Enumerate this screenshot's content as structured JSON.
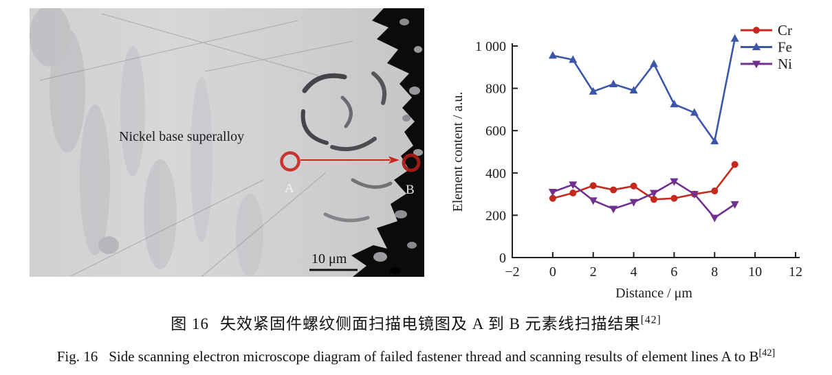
{
  "figure": {
    "caption_zh_label": "图 16",
    "caption_zh_text": "失效紧固件螺纹侧面扫描电镜图及 A 到 B 元素线扫描结果",
    "caption_en_label": "Fig. 16",
    "caption_en_text": "Side scanning electron microscope diagram of failed fastener thread and scanning results of element lines A to B",
    "caption_ref": "[42]"
  },
  "sem": {
    "region_label": "Nickel base superalloy",
    "point_a": "A",
    "point_b": "B",
    "scale_bar": "10 μm",
    "annotation_color": "#c62820"
  },
  "chart_data": {
    "type": "line",
    "title": "",
    "xlabel": "Distance / μm",
    "ylabel": "Element content / a.u.",
    "xlim": [
      -2,
      12
    ],
    "ylim": [
      0,
      1000
    ],
    "xticks": [
      -2,
      0,
      2,
      4,
      6,
      8,
      10,
      12
    ],
    "xtick_labels": [
      "−2",
      "0",
      "2",
      "4",
      "6",
      "8",
      "10",
      "12"
    ],
    "yticks": [
      0,
      200,
      400,
      600,
      800,
      1000
    ],
    "ytick_labels": [
      "0",
      "200",
      "400",
      "600",
      "800",
      "1 000"
    ],
    "grid": false,
    "legend_position": "top-right",
    "x": [
      0,
      1,
      2,
      3,
      4,
      5,
      6,
      7,
      8,
      9
    ],
    "series": [
      {
        "name": "Cr",
        "color": "#c5281c",
        "marker": "circle",
        "values": [
          280,
          305,
          340,
          320,
          338,
          275,
          280,
          300,
          315,
          440
        ]
      },
      {
        "name": "Fe",
        "color": "#3b55a9",
        "marker": "triangle-up",
        "values": [
          955,
          935,
          785,
          820,
          790,
          915,
          725,
          685,
          550,
          1035
        ]
      },
      {
        "name": "Ni",
        "color": "#70308e",
        "marker": "triangle-down",
        "values": [
          310,
          345,
          270,
          230,
          262,
          305,
          360,
          300,
          188,
          252
        ]
      }
    ]
  }
}
